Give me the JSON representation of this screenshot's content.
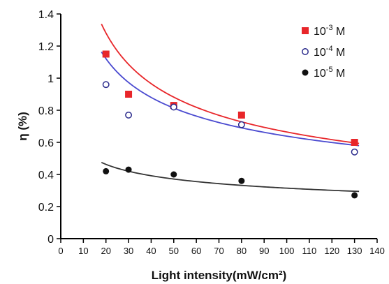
{
  "chart_data": {
    "type": "scatter",
    "xlabel": "Light intensity(mW/cm²)",
    "ylabel": "η (%)",
    "xlim": [
      0,
      140
    ],
    "ylim": [
      0,
      1.4
    ],
    "x_ticks": [
      "0",
      "10",
      "20",
      "30",
      "40",
      "50",
      "60",
      "70",
      "80",
      "90",
      "100",
      "110",
      "120",
      "130",
      "140"
    ],
    "y_ticks": [
      "0",
      "0.2",
      "0.4",
      "0.6",
      "0.8",
      "1",
      "1.2",
      "1.4"
    ],
    "grid": false,
    "legend_position": "top-right",
    "series": [
      {
        "name": "10-3 M",
        "name_base": "10",
        "name_sup": "-3",
        "name_unit": " M",
        "marker": "filled-square",
        "color": "#e8262a",
        "x": [
          20,
          30,
          50,
          80,
          130
        ],
        "y": [
          1.15,
          0.9,
          0.83,
          0.77,
          0.6
        ],
        "fit": {
          "type": "power",
          "a": 4.35,
          "b": -0.408
        }
      },
      {
        "name": "10-4 M",
        "name_base": "10",
        "name_sup": "-4",
        "name_unit": " M",
        "marker": "open-circle",
        "color": "#2b2b8c",
        "fit_color": "#4a4ad0",
        "x": [
          20,
          30,
          50,
          80,
          130
        ],
        "y": [
          0.96,
          0.77,
          0.82,
          0.71,
          0.54
        ],
        "fit": {
          "type": "power",
          "a": 3.2,
          "b": -0.35
        }
      },
      {
        "name": "10-5 M",
        "name_base": "10",
        "name_sup": "-5",
        "name_unit": " M",
        "marker": "filled-circle",
        "color": "#111111",
        "fit_color": "#333333",
        "x": [
          20,
          30,
          50,
          80,
          130
        ],
        "y": [
          0.42,
          0.43,
          0.4,
          0.36,
          0.27
        ],
        "fit": {
          "type": "power",
          "a": 0.95,
          "b": -0.24
        }
      }
    ]
  }
}
